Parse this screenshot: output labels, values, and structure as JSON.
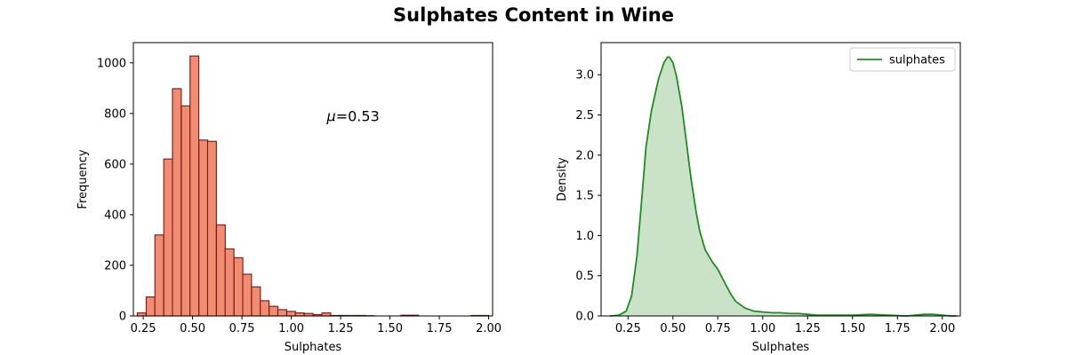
{
  "suptitle": "Sulphates Content in Wine",
  "colors": {
    "hist_fill": "#F08C72",
    "hist_edge": "#7B1510",
    "kde_line": "#228B22",
    "kde_fill": "#C9E2C8"
  },
  "chart_data": [
    {
      "type": "bar",
      "subtype": "histogram",
      "title": "",
      "xlabel": "Sulphates",
      "ylabel": "Frequency",
      "xlim": [
        0.2,
        2.02
      ],
      "ylim": [
        0,
        1080
      ],
      "xticks": [
        0.25,
        0.5,
        0.75,
        1.0,
        1.25,
        1.5,
        1.75,
        2.0
      ],
      "xtick_labels": [
        "0.25",
        "0.50",
        "0.75",
        "1.00",
        "1.25",
        "1.50",
        "1.75",
        "2.00"
      ],
      "yticks": [
        0,
        200,
        400,
        600,
        800,
        1000
      ],
      "ytick_labels": [
        "0",
        "200",
        "400",
        "600",
        "800",
        "1000"
      ],
      "bin_width": 0.0445,
      "bins": [
        {
          "x0": 0.22,
          "count": 12
        },
        {
          "x0": 0.265,
          "count": 75
        },
        {
          "x0": 0.309,
          "count": 320
        },
        {
          "x0": 0.354,
          "count": 620
        },
        {
          "x0": 0.398,
          "count": 898
        },
        {
          "x0": 0.443,
          "count": 830
        },
        {
          "x0": 0.487,
          "count": 1027
        },
        {
          "x0": 0.532,
          "count": 695
        },
        {
          "x0": 0.576,
          "count": 690
        },
        {
          "x0": 0.621,
          "count": 360
        },
        {
          "x0": 0.665,
          "count": 265
        },
        {
          "x0": 0.71,
          "count": 230
        },
        {
          "x0": 0.754,
          "count": 165
        },
        {
          "x0": 0.799,
          "count": 115
        },
        {
          "x0": 0.843,
          "count": 60
        },
        {
          "x0": 0.888,
          "count": 38
        },
        {
          "x0": 0.932,
          "count": 25
        },
        {
          "x0": 0.977,
          "count": 18
        },
        {
          "x0": 1.021,
          "count": 12
        },
        {
          "x0": 1.066,
          "count": 10
        },
        {
          "x0": 1.11,
          "count": 5
        },
        {
          "x0": 1.155,
          "count": 12
        },
        {
          "x0": 1.199,
          "count": 2
        },
        {
          "x0": 1.244,
          "count": 2
        },
        {
          "x0": 1.288,
          "count": 2
        },
        {
          "x0": 1.333,
          "count": 2
        },
        {
          "x0": 1.377,
          "count": 1
        },
        {
          "x0": 1.422,
          "count": 0
        },
        {
          "x0": 1.466,
          "count": 0
        },
        {
          "x0": 1.511,
          "count": 0
        },
        {
          "x0": 1.555,
          "count": 3
        },
        {
          "x0": 1.6,
          "count": 3
        },
        {
          "x0": 1.644,
          "count": 0
        },
        {
          "x0": 1.689,
          "count": 0
        },
        {
          "x0": 1.733,
          "count": 0
        },
        {
          "x0": 1.778,
          "count": 0
        },
        {
          "x0": 1.822,
          "count": 0
        },
        {
          "x0": 1.867,
          "count": 0
        },
        {
          "x0": 1.911,
          "count": 2
        },
        {
          "x0": 1.956,
          "count": 2
        }
      ],
      "annotation": {
        "prefix": "μ",
        "text": "=0.53",
        "x": 1.18,
        "y": 790
      }
    },
    {
      "type": "area",
      "subtype": "kde",
      "title": "",
      "xlabel": "Sulphates",
      "ylabel": "Density",
      "xlim": [
        0.1,
        2.1
      ],
      "ylim": [
        0,
        3.4
      ],
      "xticks": [
        0.25,
        0.5,
        0.75,
        1.0,
        1.25,
        1.5,
        1.75,
        2.0
      ],
      "xtick_labels": [
        "0.25",
        "0.50",
        "0.75",
        "1.00",
        "1.25",
        "1.50",
        "1.75",
        "2.00"
      ],
      "yticks": [
        0,
        0.5,
        1.0,
        1.5,
        2.0,
        2.5,
        3.0
      ],
      "ytick_labels": [
        "0.0",
        "0.5",
        "1.0",
        "1.5",
        "2.0",
        "2.5",
        "3.0"
      ],
      "legend": {
        "position": "top-right",
        "label": "sulphates"
      },
      "series": [
        {
          "name": "sulphates",
          "x": [
            0.15,
            0.2,
            0.24,
            0.27,
            0.3,
            0.33,
            0.35,
            0.38,
            0.4,
            0.42,
            0.45,
            0.47,
            0.48,
            0.5,
            0.52,
            0.55,
            0.57,
            0.6,
            0.63,
            0.65,
            0.68,
            0.72,
            0.75,
            0.78,
            0.82,
            0.85,
            0.9,
            0.95,
            1.0,
            1.05,
            1.1,
            1.15,
            1.2,
            1.25,
            1.3,
            1.4,
            1.5,
            1.6,
            1.7,
            1.8,
            1.9,
            1.95,
            2.0,
            2.05,
            2.08
          ],
          "y": [
            0.0,
            0.01,
            0.06,
            0.25,
            0.75,
            1.55,
            2.1,
            2.55,
            2.75,
            2.95,
            3.15,
            3.22,
            3.22,
            3.15,
            2.98,
            2.6,
            2.25,
            1.72,
            1.28,
            1.05,
            0.82,
            0.67,
            0.58,
            0.45,
            0.28,
            0.18,
            0.1,
            0.06,
            0.05,
            0.04,
            0.04,
            0.03,
            0.03,
            0.02,
            0.01,
            0.01,
            0.01,
            0.02,
            0.01,
            0.0,
            0.02,
            0.02,
            0.01,
            0.0,
            0.0
          ]
        }
      ]
    }
  ]
}
